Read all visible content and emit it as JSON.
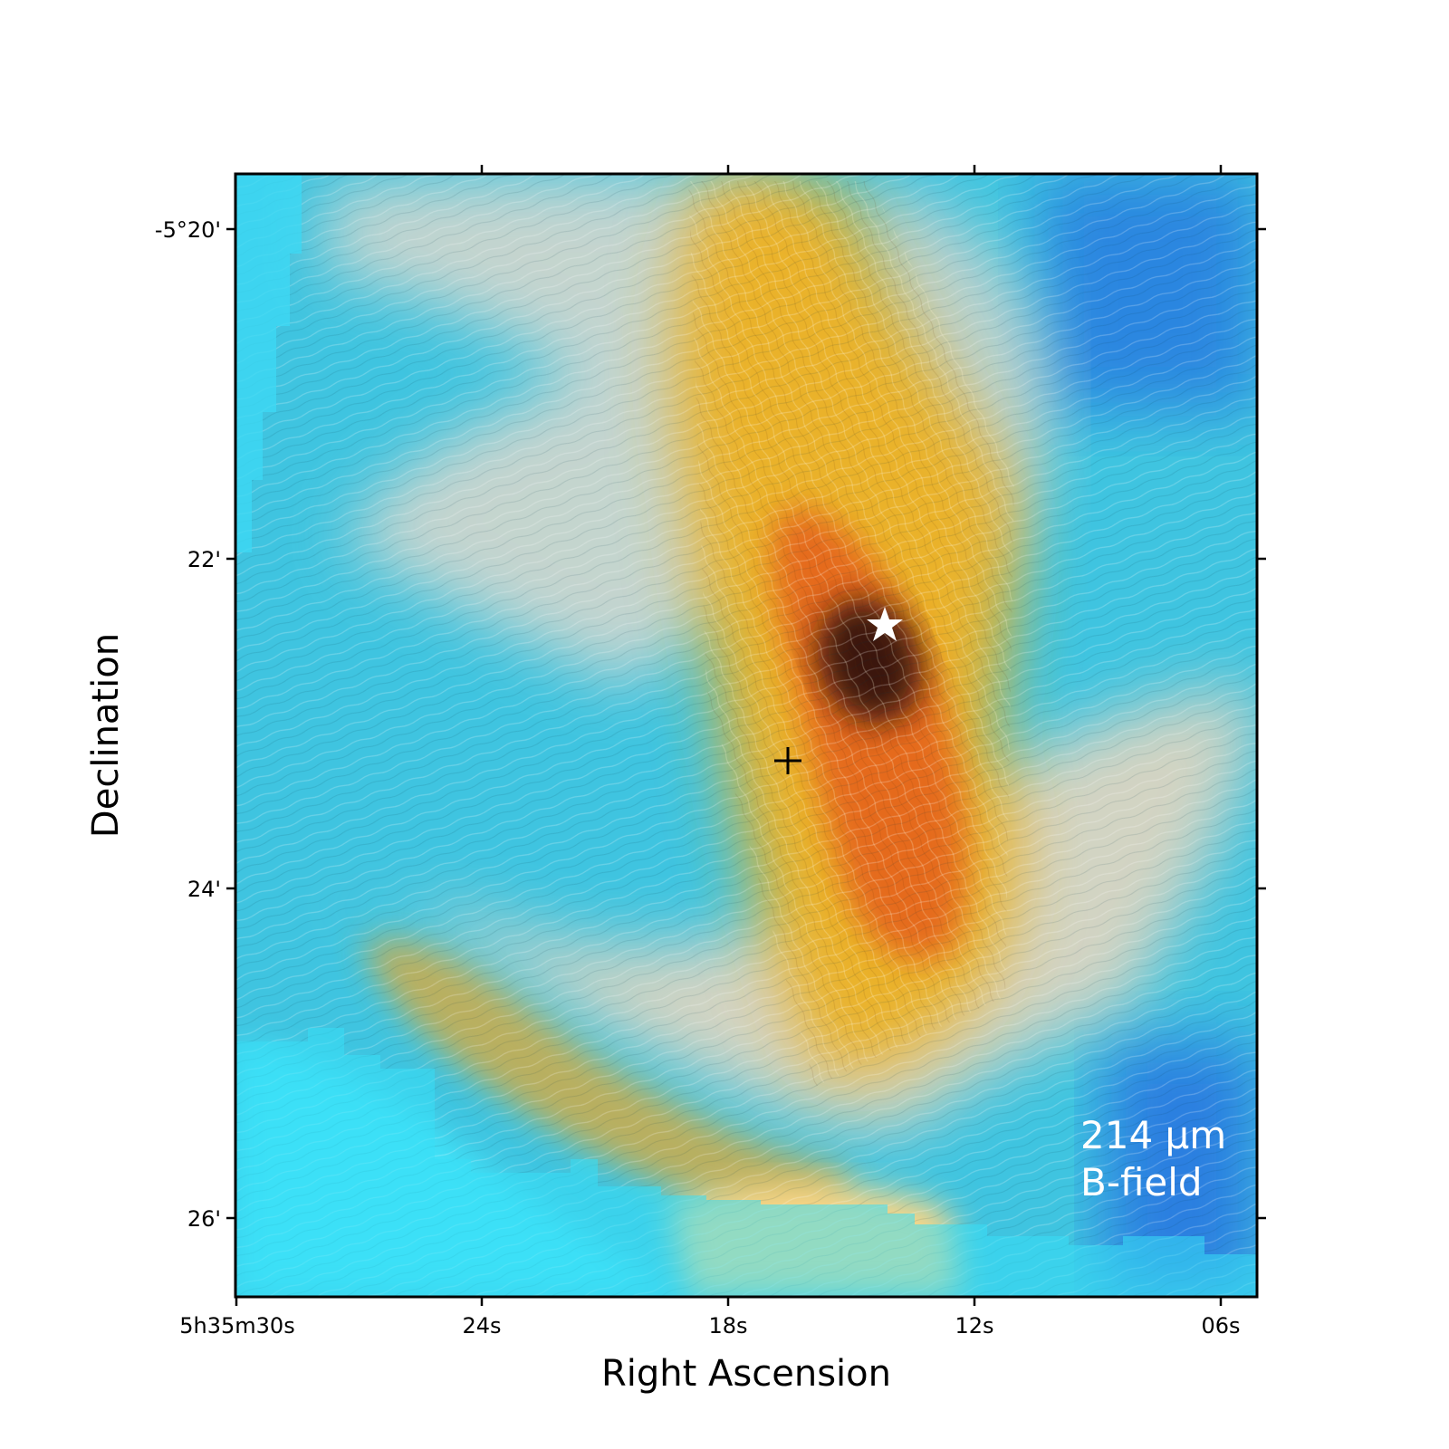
{
  "axes": {
    "xlabel": "Right Ascension",
    "ylabel": "Declination",
    "x_ticks": [
      "5h35m30s",
      "24s",
      "18s",
      "12s",
      "06s"
    ],
    "y_ticks": [
      "-5°20'",
      "22'",
      "24'",
      "26'"
    ]
  },
  "annotation": {
    "line1": "214 μm",
    "line2": "B-field"
  },
  "markers": {
    "star": "star-marker",
    "cross": "cross-marker"
  },
  "colors": {
    "low_intensity": "#33d9f5",
    "mid_intensity": "#e6dccb",
    "high_intensity": "#f0a020",
    "peak_intensity": "#2a0f0f",
    "frame": "#000000",
    "text_overlay": "#ffffff"
  }
}
